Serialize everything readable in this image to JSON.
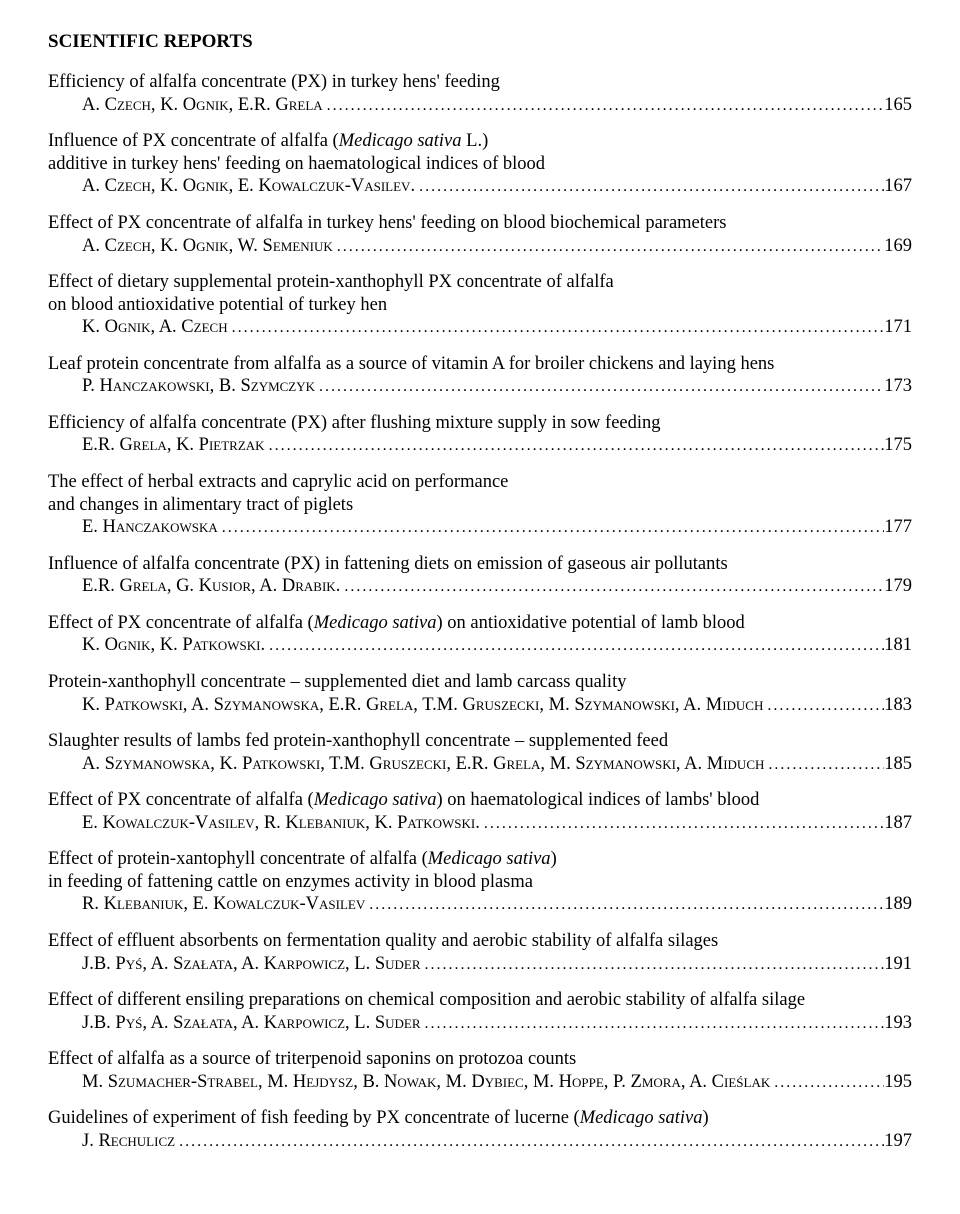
{
  "heading": "SCIENTIFIC REPORTS",
  "italic_phrase": "Medicago sativa",
  "entries": [
    {
      "title": "Efficiency of alfalfa concentrate (PX) in turkey hens' feeding",
      "authors": "A. Czech, K. Ognik, E.R. Grela",
      "page": "165"
    },
    {
      "title_pre": "Influence of PX concentrate of alfalfa (",
      "title_post": " L.)",
      "subtitle": "additive in turkey hens' feeding on haematological indices of blood",
      "authors": "A. Czech, K. Ognik, E. Kowalczuk-Vasilev.",
      "page": "167"
    },
    {
      "title": "Effect of PX concentrate of alfalfa in turkey hens' feeding on blood biochemical parameters",
      "authors": "A. Czech, K. Ognik, W. Semeniuk",
      "page": "169"
    },
    {
      "title": "Effect of dietary supplemental protein-xanthophyll PX concentrate of alfalfa",
      "subtitle": "on blood antioxidative potential of turkey hen",
      "authors": "K. Ognik, A. Czech",
      "page": "171"
    },
    {
      "title": "Leaf protein concentrate from alfalfa as a source of vitamin A for broiler chickens and laying hens",
      "authors": "P. Hanczakowski, B. Szymczyk",
      "page": "173"
    },
    {
      "title": "Efficiency of alfalfa concentrate (PX) after flushing mixture supply in sow feeding",
      "authors": "E.R. Grela, K. Pietrzak",
      "page": "175"
    },
    {
      "title": "The effect of herbal extracts and caprylic acid on performance",
      "subtitle": "and changes in alimentary tract of piglets",
      "authors": "E. Hanczakowska",
      "page": "177"
    },
    {
      "title": "Influence of alfalfa concentrate (PX) in fattening diets on emission of gaseous air pollutants",
      "authors": "E.R. Grela, G. Kusior, A. Drabik.",
      "page": "179"
    },
    {
      "title_pre": "Effect of PX concentrate of alfalfa (",
      "title_post": ") on antioxidative potential of lamb blood",
      "authors": "K. Ognik, K. Patkowski.",
      "page": "181"
    },
    {
      "title": "Protein-xanthophyll concentrate – supplemented diet and lamb carcass quality",
      "authors": "K. Patkowski, A. Szymanowska, E.R. Grela, T.M. Gruszecki, M. Szymanowski, A. Miduch",
      "page": "183"
    },
    {
      "title": "Slaughter results of lambs fed protein-xanthophyll concentrate – supplemented feed",
      "authors": "A. Szymanowska, K. Patkowski, T.M. Gruszecki, E.R. Grela, M. Szymanowski, A. Miduch",
      "page": "185"
    },
    {
      "title_pre": "Effect of PX concentrate of alfalfa (",
      "title_post": ") on haematological indices of lambs' blood",
      "authors": "E. Kowalczuk-Vasilev, R. Klebaniuk, K. Patkowski.",
      "page": "187"
    },
    {
      "title_pre": "Effect of protein-xantophyll concentrate of alfalfa (",
      "title_post": ")",
      "subtitle": "in feeding of fattening cattle on enzymes activity in blood plasma",
      "authors": "R. Klebaniuk, E. Kowalczuk-Vasilev",
      "page": "189"
    },
    {
      "title": "Effect of effluent absorbents on fermentation quality and aerobic stability of alfalfa silages",
      "authors": "J.B. Pyś, A. Szałata, A. Karpowicz, L. Suder",
      "page": "191"
    },
    {
      "title": "Effect of different ensiling preparations on chemical composition and aerobic stability of alfalfa silage",
      "authors": "J.B. Pyś, A. Szałata, A. Karpowicz, L. Suder",
      "page": "193"
    },
    {
      "title": "Effect of alfalfa as a source of triterpenoid saponins on protozoa counts",
      "authors": "M. Szumacher-Strabel, M. Hejdysz, B. Nowak, M. Dybiec, M. Hoppe, P. Zmora, A. Cieślak",
      "page": "195"
    },
    {
      "title_pre": "Guidelines of experiment of fish feeding by PX concentrate of lucerne (",
      "title_post": ")",
      "authors": "J. Rechulicz",
      "page": "197"
    }
  ]
}
